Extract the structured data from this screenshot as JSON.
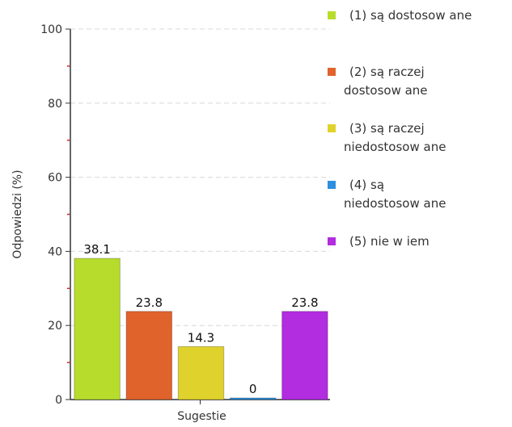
{
  "chart_data": {
    "type": "bar",
    "title": "",
    "xlabel": "Sugestie",
    "ylabel": "Odpowiedzi (%)",
    "ylim": [
      0,
      100
    ],
    "yticks": [
      0,
      20,
      40,
      60,
      80,
      100
    ],
    "grid": true,
    "legend_position": "right",
    "categories": [
      "Sugestie"
    ],
    "series": [
      {
        "name": "(1) są dostosowane",
        "legend_lines": [
          "(1) są dostosow ane"
        ],
        "values": [
          38.1
        ],
        "label": "38.1",
        "color": "#b8dc2c"
      },
      {
        "name": "(2) są raczej dostosowane",
        "legend_lines": [
          "(2) są raczej",
          "dostosow ane"
        ],
        "values": [
          23.8
        ],
        "label": "23.8",
        "color": "#e0632c"
      },
      {
        "name": "(3) są raczej niedostosowane",
        "legend_lines": [
          "(3) są raczej",
          "niedostosow ane"
        ],
        "values": [
          14.3
        ],
        "label": "14.3",
        "color": "#e0d22c"
      },
      {
        "name": "(4) są niedostosowane",
        "legend_lines": [
          "(4) są",
          "niedostosow ane"
        ],
        "values": [
          0
        ],
        "label": "0",
        "color": "#2c8fe0"
      },
      {
        "name": "(5) nie wiem",
        "legend_lines": [
          "(5) nie w iem"
        ],
        "values": [
          23.8
        ],
        "label": "23.8",
        "color": "#b22ce0"
      }
    ]
  }
}
